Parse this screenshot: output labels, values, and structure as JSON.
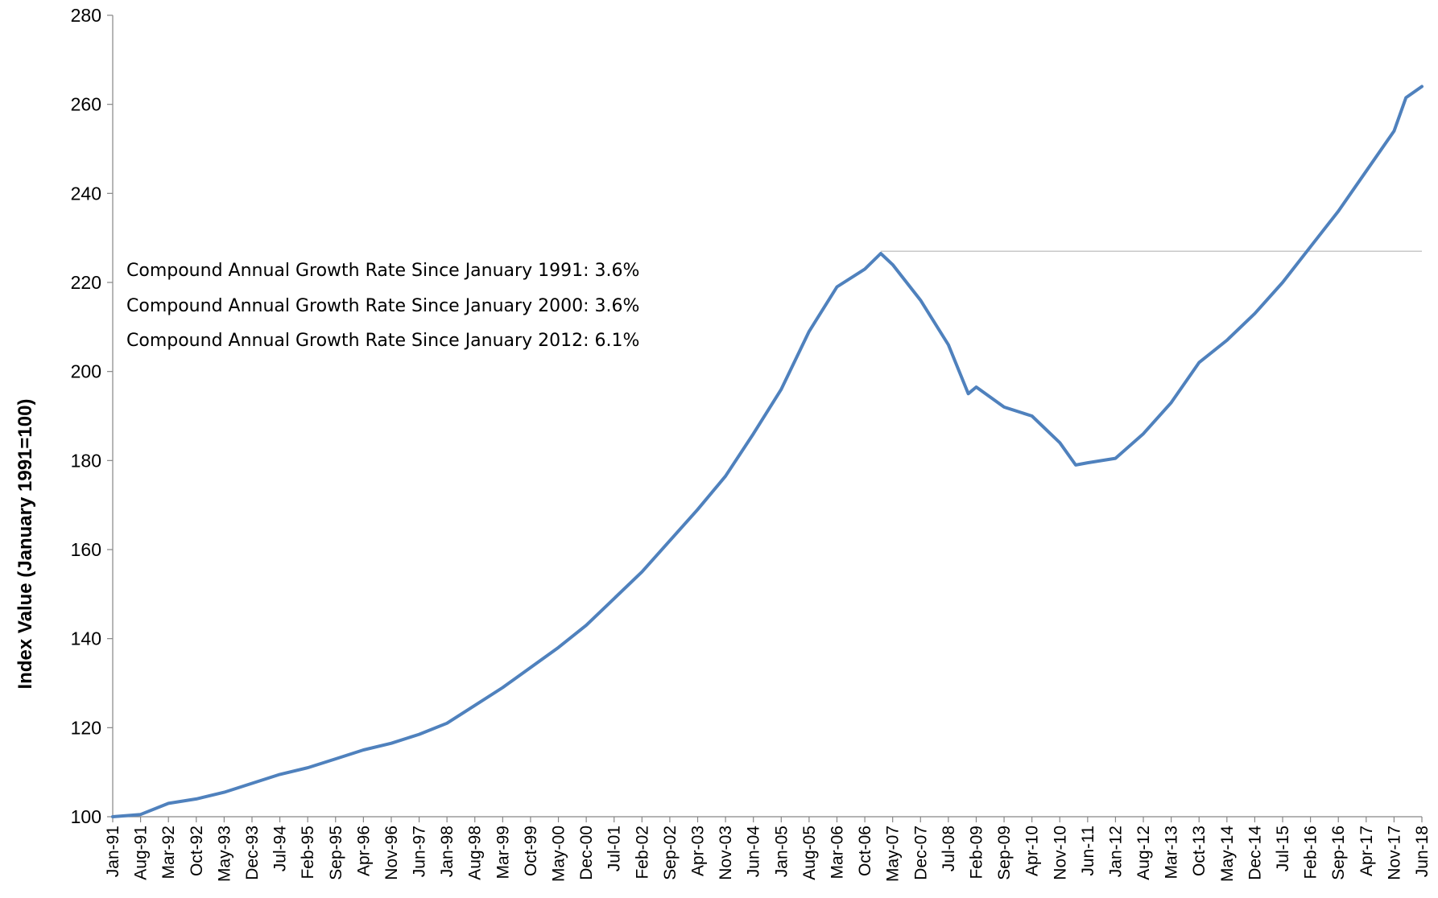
{
  "chart_data": {
    "type": "line",
    "title": "",
    "xlabel": "",
    "ylabel": "Index Value (January 1991=100)",
    "ylim": [
      100,
      280
    ],
    "yticks": [
      100,
      120,
      140,
      160,
      180,
      200,
      220,
      240,
      260,
      280
    ],
    "x_range": [
      "Jan-91",
      "Jun-18"
    ],
    "grid": false,
    "xtick_labels": [
      "Jan-91",
      "Aug-91",
      "Mar-92",
      "Oct-92",
      "May-93",
      "Dec-93",
      "Jul-94",
      "Feb-95",
      "Sep-95",
      "Apr-96",
      "Nov-96",
      "Jun-97",
      "Jan-98",
      "Aug-98",
      "Mar-99",
      "Oct-99",
      "May-00",
      "Dec-00",
      "Jul-01",
      "Feb-02",
      "Sep-02",
      "Apr-03",
      "Nov-03",
      "Jun-04",
      "Jan-05",
      "Aug-05",
      "Mar-06",
      "Oct-06",
      "May-07",
      "Dec-07",
      "Jul-08",
      "Feb-09",
      "Sep-09",
      "Apr-10",
      "Nov-10",
      "Jun-11",
      "Jan-12",
      "Aug-12",
      "Mar-13",
      "Oct-13",
      "May-14",
      "Dec-14",
      "Jul-15",
      "Feb-16",
      "Sep-16",
      "Apr-17",
      "Nov-17",
      "Jun-18"
    ],
    "series": [
      {
        "color": "#4f81bd",
        "points": [
          {
            "x": "Jan-91",
            "y": 100.0
          },
          {
            "x": "Aug-91",
            "y": 100.5
          },
          {
            "x": "Mar-92",
            "y": 103.0
          },
          {
            "x": "Oct-92",
            "y": 104.0
          },
          {
            "x": "May-93",
            "y": 105.5
          },
          {
            "x": "Dec-93",
            "y": 107.5
          },
          {
            "x": "Jul-94",
            "y": 109.5
          },
          {
            "x": "Feb-95",
            "y": 111.0
          },
          {
            "x": "Sep-95",
            "y": 113.0
          },
          {
            "x": "Apr-96",
            "y": 115.0
          },
          {
            "x": "Nov-96",
            "y": 116.5
          },
          {
            "x": "Jun-97",
            "y": 118.5
          },
          {
            "x": "Jan-98",
            "y": 121.0
          },
          {
            "x": "Aug-98",
            "y": 125.0
          },
          {
            "x": "Mar-99",
            "y": 129.0
          },
          {
            "x": "Oct-99",
            "y": 133.5
          },
          {
            "x": "May-00",
            "y": 138.0
          },
          {
            "x": "Dec-00",
            "y": 143.0
          },
          {
            "x": "Jul-01",
            "y": 149.0
          },
          {
            "x": "Feb-02",
            "y": 155.0
          },
          {
            "x": "Sep-02",
            "y": 162.0
          },
          {
            "x": "Apr-03",
            "y": 169.0
          },
          {
            "x": "Nov-03",
            "y": 176.5
          },
          {
            "x": "Jun-04",
            "y": 186.0
          },
          {
            "x": "Jan-05",
            "y": 196.0
          },
          {
            "x": "Aug-05",
            "y": 209.0
          },
          {
            "x": "Mar-06",
            "y": 219.0
          },
          {
            "x": "Oct-06",
            "y": 223.0
          },
          {
            "x": "Feb-07",
            "y": 226.5
          },
          {
            "x": "May-07",
            "y": 224.0
          },
          {
            "x": "Dec-07",
            "y": 216.0
          },
          {
            "x": "Jul-08",
            "y": 206.0
          },
          {
            "x": "Dec-08",
            "y": 195.0
          },
          {
            "x": "Feb-09",
            "y": 196.5
          },
          {
            "x": "Sep-09",
            "y": 192.0
          },
          {
            "x": "Apr-10",
            "y": 190.0
          },
          {
            "x": "Nov-10",
            "y": 184.0
          },
          {
            "x": "Mar-11",
            "y": 179.0
          },
          {
            "x": "Jun-11",
            "y": 179.5
          },
          {
            "x": "Jan-12",
            "y": 180.5
          },
          {
            "x": "Aug-12",
            "y": 186.0
          },
          {
            "x": "Mar-13",
            "y": 193.0
          },
          {
            "x": "Oct-13",
            "y": 202.0
          },
          {
            "x": "May-14",
            "y": 207.0
          },
          {
            "x": "Dec-14",
            "y": 213.0
          },
          {
            "x": "Jul-15",
            "y": 220.0
          },
          {
            "x": "Feb-16",
            "y": 228.0
          },
          {
            "x": "Sep-16",
            "y": 236.0
          },
          {
            "x": "Apr-17",
            "y": 245.0
          },
          {
            "x": "Nov-17",
            "y": 254.0
          },
          {
            "x": "Feb-18",
            "y": 261.5
          },
          {
            "x": "Jun-18",
            "y": 264.0
          }
        ]
      }
    ],
    "reference_line": {
      "y": 227,
      "from": "Feb-07",
      "to": "Jun-18",
      "color": "#c8c8c8"
    },
    "annotations": [
      "Compound Annual Growth Rate Since January 1991:  3.6%",
      "Compound Annual Growth Rate Since January 2000:  3.6%",
      "Compound Annual Growth Rate Since January 2012:  6.1%"
    ]
  }
}
